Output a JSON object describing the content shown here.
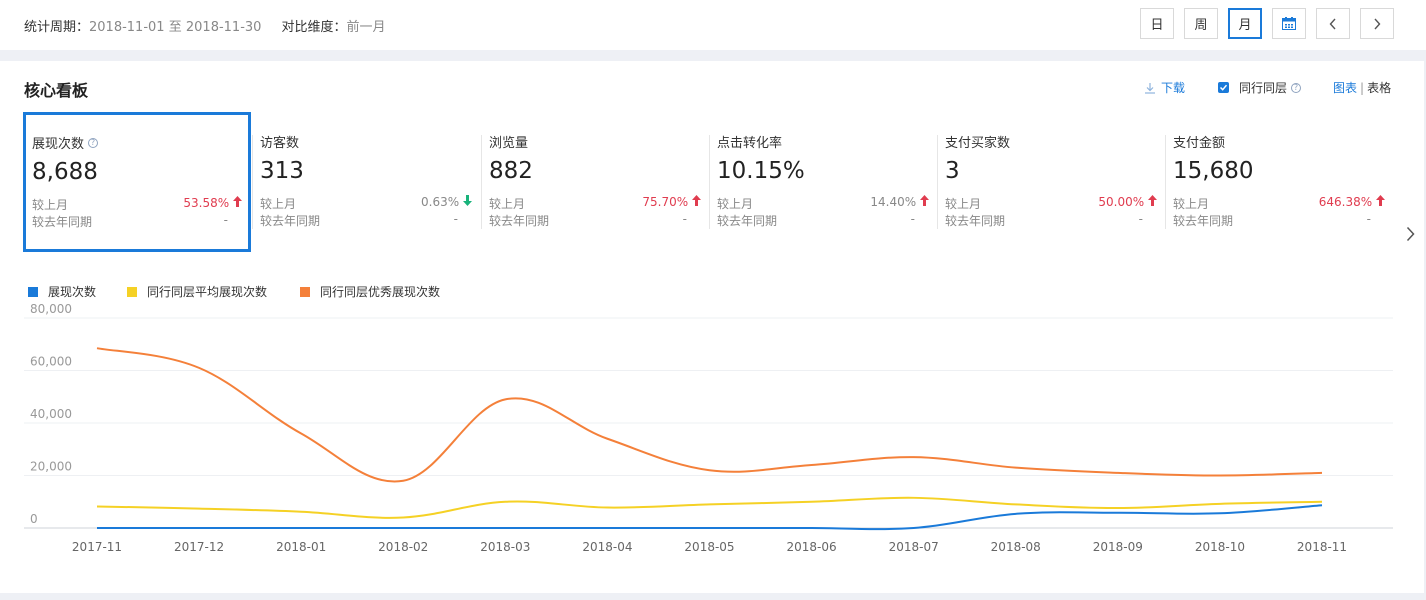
{
  "header": {
    "period_label": "统计周期：",
    "period_start": "2018-11-01",
    "period_sep": "至",
    "period_end": "2018-11-30",
    "compare_label": "对比维度：",
    "compare_value": "前一月",
    "buttons": {
      "day": "日",
      "week": "周",
      "month": "月"
    },
    "active_button": "月"
  },
  "panel": {
    "title": "核心看板",
    "download": "下载",
    "peer_label": "同行同层",
    "peer_checked": true,
    "view_chart": "图表",
    "view_sep": "|",
    "view_table": "表格"
  },
  "metrics": [
    {
      "label": "展现次数",
      "value": "8,688",
      "cmp1_label": "较上月",
      "cmp1_value": "53.58%",
      "cmp1_dir": "up",
      "cmp2_label": "较去年同期",
      "cmp2_value": "-"
    },
    {
      "label": "访客数",
      "value": "313",
      "cmp1_label": "较上月",
      "cmp1_value": "0.63%",
      "cmp1_dir": "down",
      "cmp2_label": "较去年同期",
      "cmp2_value": "-"
    },
    {
      "label": "浏览量",
      "value": "882",
      "cmp1_label": "较上月",
      "cmp1_value": "75.70%",
      "cmp1_dir": "up",
      "cmp2_label": "较去年同期",
      "cmp2_value": "-"
    },
    {
      "label": "点击转化率",
      "value": "10.15%",
      "cmp1_label": "较上月",
      "cmp1_value": "14.40%",
      "cmp1_dir": "up",
      "cmp2_label": "较去年同期",
      "cmp2_value": "-"
    },
    {
      "label": "支付买家数",
      "value": "3",
      "cmp1_label": "较上月",
      "cmp1_value": "50.00%",
      "cmp1_dir": "up",
      "cmp2_label": "较去年同期",
      "cmp2_value": "-"
    },
    {
      "label": "支付金额",
      "value": "15,680",
      "cmp1_label": "较上月",
      "cmp1_value": "646.38%",
      "cmp1_dir": "up",
      "cmp2_label": "较去年同期",
      "cmp2_value": "-"
    }
  ],
  "colors": {
    "accent": "#1a7ad9",
    "up": "#e03c4f",
    "down": "#19b37b"
  },
  "chart_data": {
    "type": "line",
    "x": [
      "2017-11",
      "2017-12",
      "2018-01",
      "2018-02",
      "2018-03",
      "2018-04",
      "2018-05",
      "2018-06",
      "2018-07",
      "2018-08",
      "2018-09",
      "2018-10",
      "2018-11"
    ],
    "yticks": [
      "80,000",
      "60,000",
      "40,000",
      "20,000",
      "0"
    ],
    "ylim": [
      0,
      80000
    ],
    "grid": true,
    "legend_position": "top-left",
    "series": [
      {
        "name": "展现次数",
        "color": "#1a7ad9",
        "values": [
          0,
          0,
          0,
          0,
          0,
          0,
          0,
          0,
          0,
          5400,
          5800,
          5600,
          8688
        ]
      },
      {
        "name": "同行同层平均展现次数",
        "color": "#f5d125",
        "values": [
          8200,
          7400,
          6200,
          4000,
          10000,
          7800,
          9000,
          10000,
          11500,
          9000,
          7600,
          9200,
          10000
        ]
      },
      {
        "name": "同行同层优秀展现次数",
        "color": "#f4803a",
        "values": [
          68500,
          61000,
          36000,
          18000,
          49000,
          34000,
          22000,
          24000,
          27000,
          23000,
          21000,
          20000,
          21000
        ]
      }
    ]
  }
}
